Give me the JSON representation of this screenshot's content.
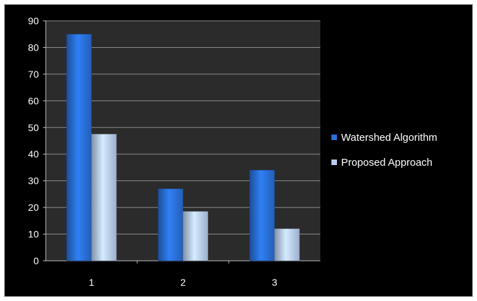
{
  "chart_data": {
    "type": "bar",
    "categories": [
      "1",
      "2",
      "3"
    ],
    "series": [
      {
        "name": "Watershed Algorithm",
        "values": [
          85,
          27,
          34
        ],
        "color": "#2a6fd6"
      },
      {
        "name": "Proposed Approach",
        "values": [
          47.5,
          18.5,
          12
        ],
        "color": "#b8cdf0"
      }
    ],
    "ylim": [
      0,
      90
    ],
    "yticks": [
      "0",
      "10",
      "20",
      "30",
      "40",
      "50",
      "60",
      "70",
      "80",
      "90"
    ],
    "grid": true,
    "legend_position": "right",
    "background": "#000000",
    "plot_background": "#2b2b2b",
    "gridline_color": "#8c8c8c"
  }
}
